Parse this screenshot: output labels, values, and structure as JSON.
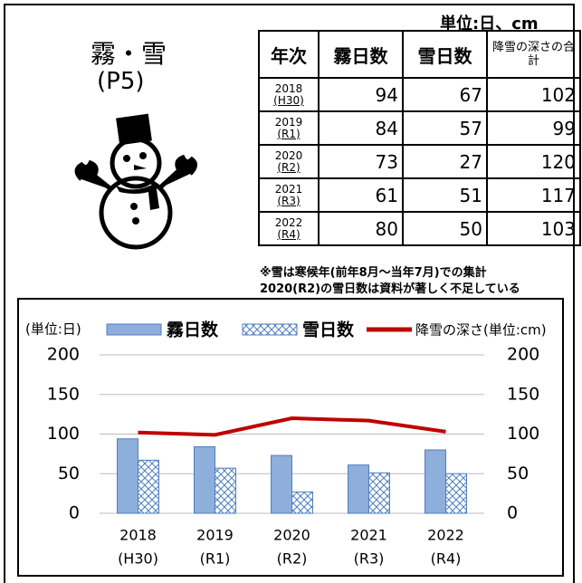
{
  "header": {
    "unit": "単位:日、cm",
    "title": "霧・雪",
    "page": "(P5)"
  },
  "table": {
    "columns": [
      "年次",
      "霧日数",
      "雪日数",
      "降雪の深さの合計"
    ],
    "rows": [
      {
        "year": "2018",
        "era": "(H30)",
        "fog": "94",
        "snow": "67",
        "depth": "102"
      },
      {
        "year": "2019",
        "era": "(R1)",
        "fog": "84",
        "snow": "57",
        "depth": "99"
      },
      {
        "year": "2020",
        "era": "(R2)",
        "fog": "73",
        "snow": "27",
        "depth": "120"
      },
      {
        "year": "2021",
        "era": "(R3)",
        "fog": "61",
        "snow": "51",
        "depth": "117"
      },
      {
        "year": "2022",
        "era": "(R4)",
        "fog": "80",
        "snow": "50",
        "depth": "103"
      }
    ]
  },
  "notes": [
    "※雪は寒候年(前年8月～当年7月)での集計",
    "2020(R2)の雪日数は資料が著しく不足している"
  ],
  "chart_data": {
    "type": "bar",
    "unit_label": "(単位:日)",
    "categories": [
      [
        "2018",
        "(H30)"
      ],
      [
        "2019",
        "(R1)"
      ],
      [
        "2020",
        "(R2)"
      ],
      [
        "2021",
        "(R3)"
      ],
      [
        "2022",
        "(R4)"
      ]
    ],
    "series": [
      {
        "name": "霧日数",
        "type": "bar",
        "color": "#8eaedb",
        "values": [
          94,
          84,
          73,
          61,
          80
        ]
      },
      {
        "name": "雪日数",
        "type": "bar",
        "color": "#4f7fbf",
        "pattern": "crosshatch",
        "values": [
          67,
          57,
          27,
          51,
          50
        ]
      },
      {
        "name": "降雪の深さ(単位:cm)",
        "type": "line",
        "color": "#c00000",
        "axis": "y2",
        "values": [
          102,
          99,
          120,
          117,
          103
        ]
      }
    ],
    "ylim": [
      0,
      200
    ],
    "yticks": [
      0,
      50,
      100,
      150,
      200
    ],
    "y2lim": [
      0,
      200
    ],
    "y2ticks": [
      0,
      50,
      100,
      150,
      200
    ],
    "grid": true
  }
}
